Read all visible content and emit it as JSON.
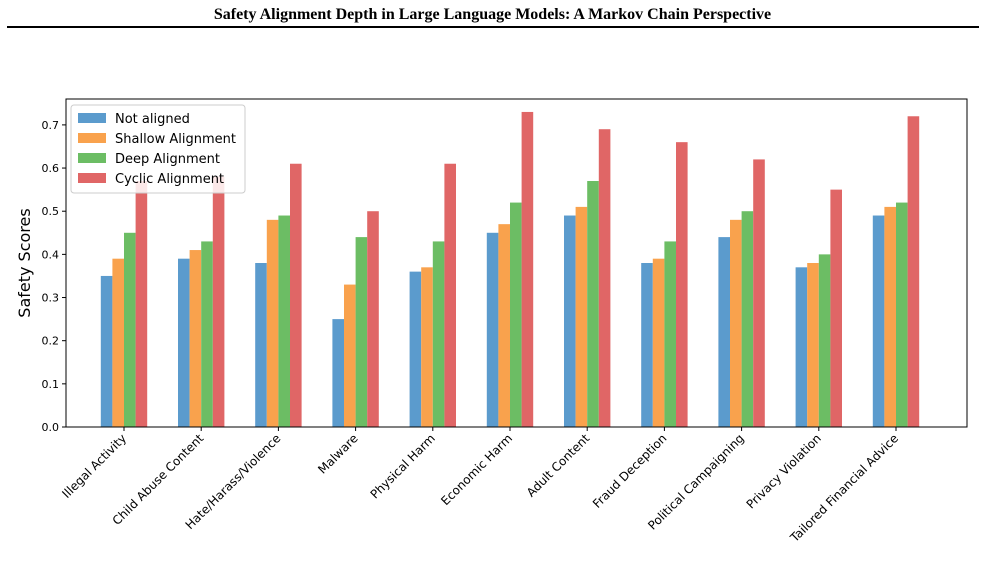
{
  "page": {
    "header_title": "Safety Alignment Depth in Large Language Models: A Markov Chain Perspective"
  },
  "chart_data": {
    "type": "bar",
    "title": "",
    "xlabel": "",
    "ylabel": "Safety Scores",
    "ylim": [
      0,
      0.76
    ],
    "yticks": [
      0.0,
      0.1,
      0.2,
      0.3,
      0.4,
      0.5,
      0.6,
      0.7
    ],
    "ytick_labels": [
      "0.0",
      "0.1",
      "0.2",
      "0.3",
      "0.4",
      "0.5",
      "0.6",
      "0.7"
    ],
    "grid": false,
    "legend_position": "upper-left",
    "categories": [
      "Illegal Activity",
      "Child Abuse Content",
      "Hate/Harass/Violence",
      "Malware",
      "Physical Harm",
      "Economic Harm",
      "Adult Content",
      "Fraud Deception",
      "Political Campaigning",
      "Privacy Violation",
      "Tailored Financial Advice"
    ],
    "series": [
      {
        "name": "Not aligned",
        "color": "#5b9bcd",
        "values": [
          0.35,
          0.39,
          0.38,
          0.25,
          0.36,
          0.45,
          0.49,
          0.38,
          0.44,
          0.37,
          0.49
        ]
      },
      {
        "name": "Shallow Alignment",
        "color": "#f9a24d",
        "values": [
          0.39,
          0.41,
          0.48,
          0.33,
          0.37,
          0.47,
          0.51,
          0.39,
          0.48,
          0.38,
          0.51
        ]
      },
      {
        "name": "Deep Alignment",
        "color": "#6cbd64",
        "values": [
          0.45,
          0.43,
          0.49,
          0.44,
          0.43,
          0.52,
          0.57,
          0.43,
          0.5,
          0.4,
          0.52
        ]
      },
      {
        "name": "Cyclic Alignment",
        "color": "#e06666",
        "values": [
          0.57,
          0.58,
          0.61,
          0.5,
          0.61,
          0.73,
          0.69,
          0.66,
          0.62,
          0.55,
          0.72
        ]
      }
    ]
  }
}
